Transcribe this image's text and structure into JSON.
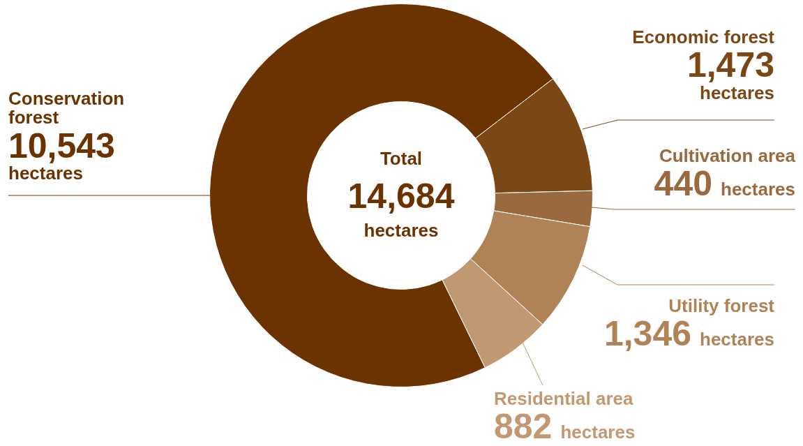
{
  "chart_data": {
    "type": "donut",
    "categories": [
      "Conservation forest",
      "Economic forest",
      "Cultivation area",
      "Utility forest",
      "Residential area"
    ],
    "values": [
      10543,
      1473,
      440,
      1346,
      882
    ],
    "colors": [
      "#6b3300",
      "#7b4714",
      "#9a6a3e",
      "#b08357",
      "#c09872"
    ],
    "value_labels": [
      "10,543 hectares",
      "1,473 hectares",
      "440 hectares",
      "1,346 hectares",
      "882 hectares"
    ],
    "annotations": [
      "Total",
      "14,684",
      "hectares"
    ],
    "legend": false
  }
}
